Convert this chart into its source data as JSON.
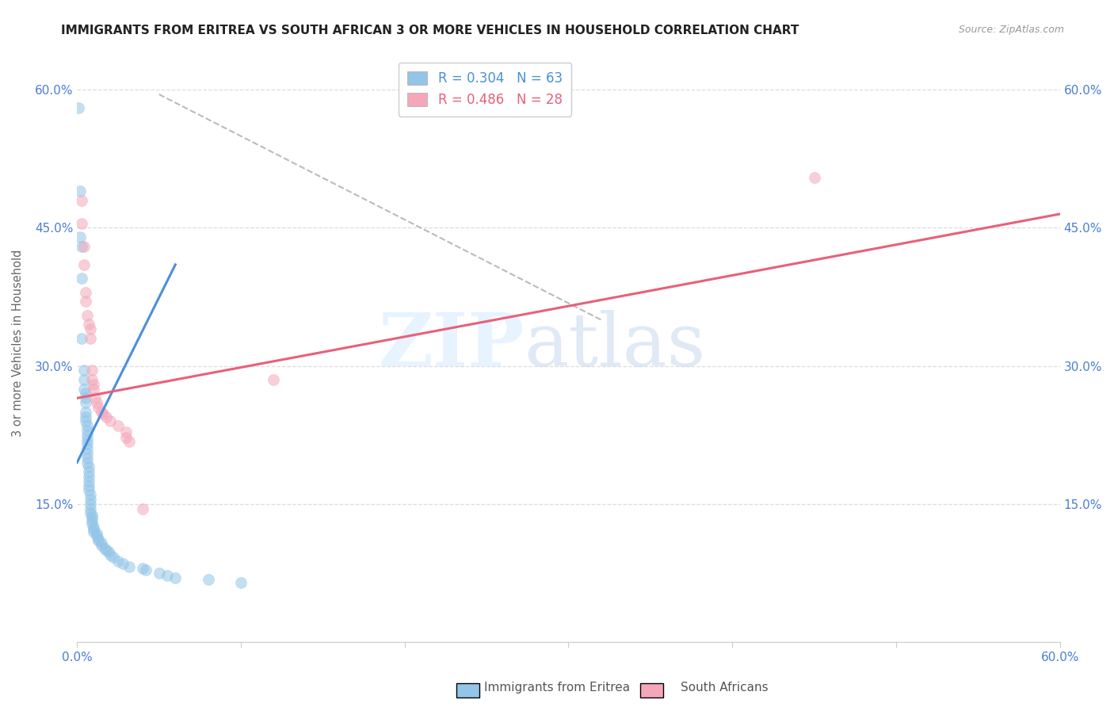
{
  "title": "IMMIGRANTS FROM ERITREA VS SOUTH AFRICAN 3 OR MORE VEHICLES IN HOUSEHOLD CORRELATION CHART",
  "source": "Source: ZipAtlas.com",
  "ylabel": "3 or more Vehicles in Household",
  "xlim": [
    0.0,
    0.6
  ],
  "ylim": [
    0.0,
    0.65
  ],
  "xticks": [
    0.0,
    0.1,
    0.2,
    0.3,
    0.4,
    0.5,
    0.6
  ],
  "yticks": [
    0.0,
    0.15,
    0.3,
    0.45,
    0.6
  ],
  "blue_scatter": [
    [
      0.001,
      0.58
    ],
    [
      0.002,
      0.49
    ],
    [
      0.002,
      0.44
    ],
    [
      0.003,
      0.43
    ],
    [
      0.003,
      0.395
    ],
    [
      0.003,
      0.33
    ],
    [
      0.004,
      0.295
    ],
    [
      0.004,
      0.285
    ],
    [
      0.004,
      0.275
    ],
    [
      0.005,
      0.27
    ],
    [
      0.005,
      0.265
    ],
    [
      0.005,
      0.26
    ],
    [
      0.005,
      0.25
    ],
    [
      0.005,
      0.245
    ],
    [
      0.005,
      0.24
    ],
    [
      0.006,
      0.235
    ],
    [
      0.006,
      0.23
    ],
    [
      0.006,
      0.225
    ],
    [
      0.006,
      0.22
    ],
    [
      0.006,
      0.215
    ],
    [
      0.006,
      0.21
    ],
    [
      0.006,
      0.205
    ],
    [
      0.006,
      0.2
    ],
    [
      0.006,
      0.195
    ],
    [
      0.007,
      0.19
    ],
    [
      0.007,
      0.185
    ],
    [
      0.007,
      0.18
    ],
    [
      0.007,
      0.175
    ],
    [
      0.007,
      0.17
    ],
    [
      0.007,
      0.165
    ],
    [
      0.008,
      0.16
    ],
    [
      0.008,
      0.155
    ],
    [
      0.008,
      0.15
    ],
    [
      0.008,
      0.145
    ],
    [
      0.008,
      0.14
    ],
    [
      0.009,
      0.138
    ],
    [
      0.009,
      0.135
    ],
    [
      0.009,
      0.132
    ],
    [
      0.009,
      0.128
    ],
    [
      0.01,
      0.125
    ],
    [
      0.01,
      0.122
    ],
    [
      0.01,
      0.12
    ],
    [
      0.012,
      0.118
    ],
    [
      0.012,
      0.115
    ],
    [
      0.013,
      0.112
    ],
    [
      0.013,
      0.11
    ],
    [
      0.015,
      0.108
    ],
    [
      0.015,
      0.105
    ],
    [
      0.017,
      0.102
    ],
    [
      0.018,
      0.1
    ],
    [
      0.019,
      0.098
    ],
    [
      0.02,
      0.095
    ],
    [
      0.022,
      0.092
    ],
    [
      0.025,
      0.088
    ],
    [
      0.028,
      0.085
    ],
    [
      0.032,
      0.082
    ],
    [
      0.04,
      0.08
    ],
    [
      0.042,
      0.078
    ],
    [
      0.05,
      0.075
    ],
    [
      0.055,
      0.072
    ],
    [
      0.06,
      0.07
    ],
    [
      0.08,
      0.068
    ],
    [
      0.1,
      0.065
    ]
  ],
  "pink_scatter": [
    [
      0.003,
      0.48
    ],
    [
      0.003,
      0.455
    ],
    [
      0.004,
      0.43
    ],
    [
      0.004,
      0.41
    ],
    [
      0.005,
      0.38
    ],
    [
      0.005,
      0.37
    ],
    [
      0.006,
      0.355
    ],
    [
      0.007,
      0.345
    ],
    [
      0.008,
      0.34
    ],
    [
      0.008,
      0.33
    ],
    [
      0.009,
      0.295
    ],
    [
      0.009,
      0.285
    ],
    [
      0.01,
      0.28
    ],
    [
      0.01,
      0.275
    ],
    [
      0.011,
      0.265
    ],
    [
      0.012,
      0.26
    ],
    [
      0.013,
      0.255
    ],
    [
      0.015,
      0.25
    ],
    [
      0.016,
      0.248
    ],
    [
      0.018,
      0.245
    ],
    [
      0.02,
      0.24
    ],
    [
      0.025,
      0.235
    ],
    [
      0.03,
      0.228
    ],
    [
      0.03,
      0.222
    ],
    [
      0.032,
      0.218
    ],
    [
      0.04,
      0.145
    ],
    [
      0.12,
      0.285
    ],
    [
      0.45,
      0.505
    ]
  ],
  "blue_line": {
    "x": [
      0.0,
      0.06
    ],
    "y": [
      0.195,
      0.41
    ]
  },
  "pink_line": {
    "x": [
      0.0,
      0.6
    ],
    "y": [
      0.265,
      0.465
    ]
  },
  "dashed_line": {
    "x": [
      0.05,
      0.32
    ],
    "y": [
      0.595,
      0.35
    ]
  },
  "watermark_zip": "ZIP",
  "watermark_atlas": "atlas",
  "scatter_size": 100,
  "scatter_alpha": 0.55,
  "blue_color": "#92c5e8",
  "pink_color": "#f4a7b9",
  "blue_line_color": "#4a90d9",
  "pink_line_color": "#e8607a",
  "dashed_line_color": "#bbbbbb",
  "tick_color": "#4a7fd4",
  "grid_color": "#dddddd",
  "ylabel_color": "#666666",
  "legend_blue_text": "R = 0.304   N = 63",
  "legend_pink_text": "R = 0.486   N = 28",
  "bottom_label_blue": "Immigrants from Eritrea",
  "bottom_label_pink": "South Africans"
}
